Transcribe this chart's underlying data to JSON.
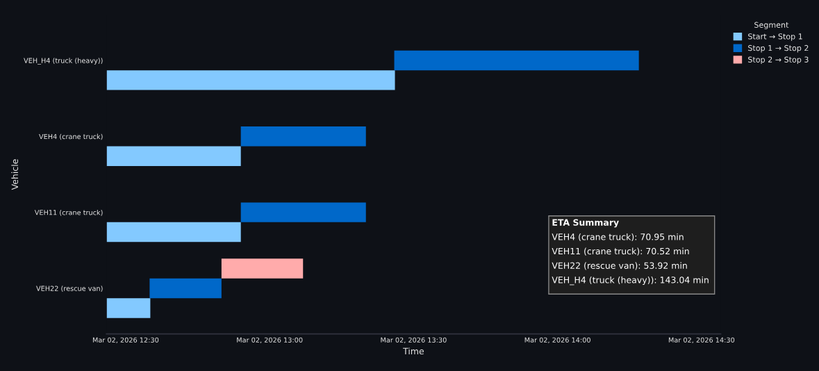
{
  "chart_data": {
    "type": "bar",
    "orientation": "horizontal",
    "xlabel": "Time",
    "ylabel": "Vehicle",
    "legend_title": "Segment",
    "categories": [
      "VEH_H4 (truck (heavy))",
      "VEH4 (crane truck)",
      "VEH11 (crane truck)",
      "VEH22 (rescue van)"
    ],
    "series": [
      {
        "name": "Start → Stop 1",
        "color": "#83c9ff",
        "base": [
          20514.5181,
          20514.5181,
          20514.5181,
          20514.5181
        ],
        "values": [
          0.0417,
          0.0194,
          0.0194,
          0.0063
        ]
      },
      {
        "name": "Stop 1 → Stop 2",
        "color": "#0068c9",
        "base": [
          20514.5597,
          20514.5375,
          20514.5375,
          20514.5243
        ],
        "values": [
          0.0354,
          0.0181,
          0.0181,
          0.0104
        ]
      },
      {
        "name": "Stop 2 → Stop 3",
        "color": "#ffabab",
        "base": [
          null,
          null,
          null,
          20514.5347
        ],
        "values": [
          null,
          null,
          null,
          0.0118
        ]
      }
    ],
    "xlim": [
      "2026-03-02T12:26",
      "2026-03-02T14:34"
    ],
    "xticks": [
      {
        "value": "2026-03-02T12:30",
        "label": "Mar 02, 2026 12:30"
      },
      {
        "value": "2026-03-02T13:00",
        "label": "Mar 02, 2026 13:00"
      },
      {
        "value": "2026-03-02T13:30",
        "label": "Mar 02, 2026 13:30"
      },
      {
        "value": "2026-03-02T14:00",
        "label": "Mar 02, 2026 14:00"
      },
      {
        "value": "2026-03-02T14:30",
        "label": "Mar 02, 2026 14:30"
      }
    ],
    "grid": false,
    "legend": "top right",
    "annotations": [
      "ETA Summary",
      "VEH4 (crane truck): 70.95 min",
      "VEH11 (crane truck): 70.52 min",
      "VEH22 (rescue van): 53.92 min",
      "VEH_H4 (truck (heavy)): 143.04 min"
    ]
  }
}
